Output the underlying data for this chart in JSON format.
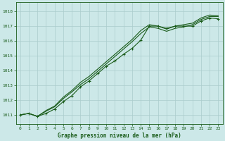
{
  "title": "Graphe pression niveau de la mer (hPa)",
  "bg_color": "#cce8e8",
  "grid_color": "#aacccc",
  "line_color": "#1a5c1a",
  "xlim": [
    -0.5,
    23.5
  ],
  "ylim": [
    1010.4,
    1018.6
  ],
  "yticks": [
    1011,
    1012,
    1013,
    1014,
    1015,
    1016,
    1017,
    1018
  ],
  "xticks": [
    0,
    1,
    2,
    3,
    4,
    5,
    6,
    7,
    8,
    9,
    10,
    11,
    12,
    13,
    14,
    15,
    16,
    17,
    18,
    19,
    20,
    21,
    22,
    23
  ],
  "series": [
    [
      1011.0,
      1011.1,
      1010.9,
      1011.1,
      1011.4,
      1011.9,
      1012.3,
      1012.9,
      1013.3,
      1013.8,
      1014.3,
      1014.65,
      1015.1,
      1015.5,
      1016.05,
      1017.0,
      1017.0,
      1016.85,
      1017.0,
      1017.0,
      1017.0,
      1017.35,
      1017.55,
      1017.5
    ],
    [
      1011.0,
      1011.1,
      1010.9,
      1011.25,
      1011.55,
      1012.1,
      1012.55,
      1013.05,
      1013.45,
      1013.95,
      1014.45,
      1014.95,
      1015.45,
      1015.95,
      1016.5,
      1016.95,
      1016.85,
      1016.65,
      1016.85,
      1016.95,
      1017.1,
      1017.45,
      1017.65,
      1017.65
    ],
    [
      1011.0,
      1011.1,
      1010.9,
      1011.3,
      1011.6,
      1012.2,
      1012.65,
      1013.2,
      1013.6,
      1014.1,
      1014.6,
      1015.1,
      1015.6,
      1016.1,
      1016.7,
      1017.1,
      1017.0,
      1016.8,
      1017.0,
      1017.1,
      1017.2,
      1017.55,
      1017.75,
      1017.7
    ]
  ],
  "marker_indices": [
    0,
    1,
    2,
    3,
    4,
    5,
    6,
    7,
    8,
    9,
    10,
    11,
    12,
    13,
    14,
    15,
    16,
    17,
    18,
    19,
    20,
    21,
    22,
    23
  ]
}
